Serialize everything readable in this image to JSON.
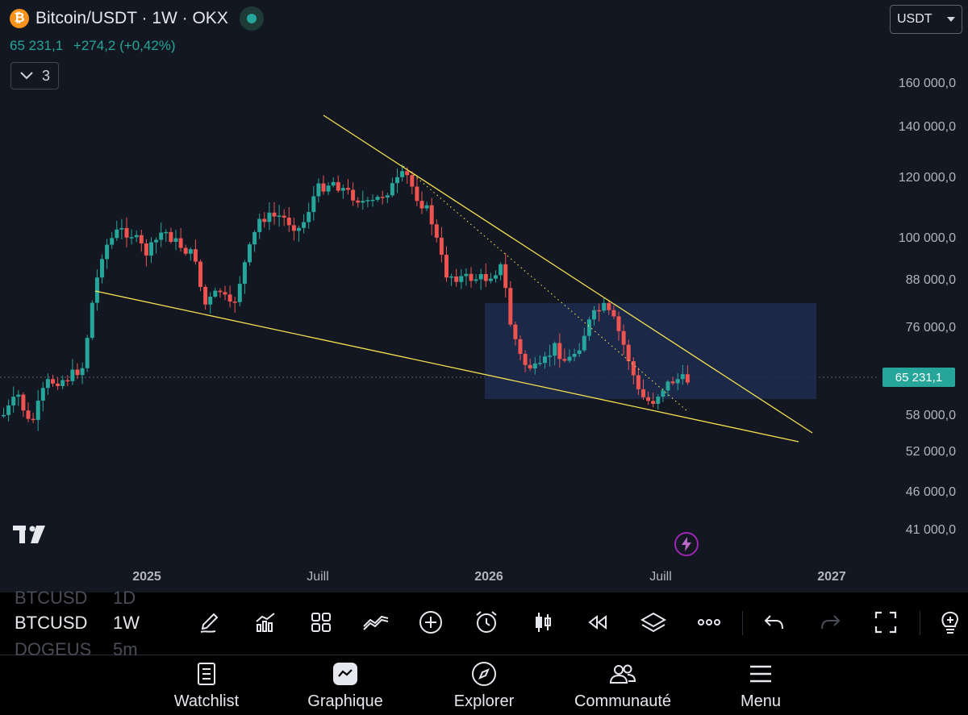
{
  "header": {
    "symbol_title": "Bitcoin/USDT · 1W · OKX",
    "last_price": "65 231,1",
    "change": "+274,2 (+0,42%)",
    "indicators_count": "3",
    "currency": "USDT",
    "logo_letter": "₿"
  },
  "chart": {
    "price_axis_labels": [
      "160 000,0",
      "140 000,0",
      "120 000,0",
      "100 000,0",
      "88 000,0",
      "76 000,0",
      "58 000,0",
      "52 000,0",
      "46 000,0",
      "41 000,0"
    ],
    "time_axis_labels": [
      "2025",
      "Juill",
      "2026",
      "Juill",
      "2027"
    ],
    "current_price_label": "65 231,1"
  },
  "toolbar": {
    "symbols": [
      {
        "symbol": "BTCUSD",
        "timeframe": "1D"
      },
      {
        "symbol": "BTCUSD",
        "timeframe": "1W"
      },
      {
        "symbol": "DOGEUS",
        "timeframe": "5m"
      }
    ],
    "icons": [
      "pencil-icon",
      "bar-chart-icon",
      "grid-icon",
      "indicators-icon",
      "plus-circle-icon",
      "alarm-icon",
      "candles-icon",
      "replay-icon",
      "layers-icon",
      "more-icon",
      "undo-icon",
      "redo-icon",
      "fullscreen-icon",
      "idea-icon"
    ]
  },
  "bottom_nav": [
    {
      "label": "Watchlist",
      "icon": "list-icon"
    },
    {
      "label": "Graphique",
      "icon": "chart-icon"
    },
    {
      "label": "Explorer",
      "icon": "compass-icon"
    },
    {
      "label": "Communauté",
      "icon": "people-icon"
    },
    {
      "label": "Menu",
      "icon": "hamburger-icon"
    }
  ],
  "colors": {
    "background": "#131722",
    "up": "#26a69a",
    "down": "#ef5350",
    "trendline": "#f5e04f",
    "zone": "#1e2b4d"
  }
}
